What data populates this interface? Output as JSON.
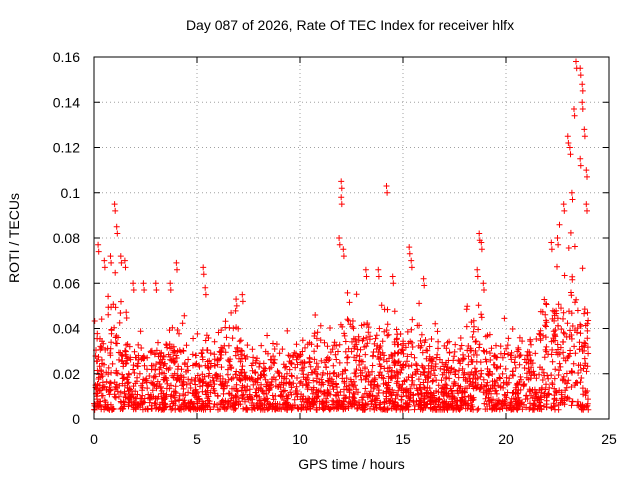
{
  "chart_data": {
    "type": "scatter",
    "title": "Day 087 of 2026, Rate Of TEC Index for receiver hlfx",
    "xlabel": "GPS time / hours",
    "ylabel": "ROTI / TECUs",
    "xlim": [
      0,
      25
    ],
    "ylim": [
      0,
      0.16
    ],
    "x_ticks": [
      "0",
      "5",
      "10",
      "15",
      "20",
      "25"
    ],
    "y_ticks": [
      "0",
      "0.02",
      "0.04",
      "0.06",
      "0.08",
      "0.1",
      "0.12",
      "0.14",
      "0.16"
    ],
    "grid": true,
    "marker": "+",
    "series": [
      {
        "name": "ROTI",
        "color": "#ff0000",
        "envelope": {
          "x": [
            0,
            0.5,
            1,
            1.5,
            2,
            2.5,
            3,
            3.5,
            4,
            4.5,
            5,
            5.5,
            6,
            6.5,
            7,
            7.5,
            8,
            8.5,
            9,
            9.5,
            10,
            10.5,
            11,
            11.5,
            12,
            12.5,
            13,
            13.5,
            14,
            14.5,
            15,
            15.5,
            16,
            16.5,
            17,
            17.5,
            18,
            18.5,
            19,
            19.5,
            20,
            20.5,
            21,
            21.5,
            22,
            22.5,
            23,
            23.5,
            24
          ],
          "typical_max": [
            0.04,
            0.05,
            0.06,
            0.05,
            0.04,
            0.035,
            0.035,
            0.04,
            0.045,
            0.035,
            0.03,
            0.035,
            0.04,
            0.045,
            0.04,
            0.03,
            0.03,
            0.03,
            0.03,
            0.035,
            0.035,
            0.04,
            0.04,
            0.04,
            0.05,
            0.045,
            0.045,
            0.05,
            0.045,
            0.04,
            0.045,
            0.045,
            0.04,
            0.035,
            0.035,
            0.03,
            0.045,
            0.05,
            0.045,
            0.04,
            0.035,
            0.04,
            0.035,
            0.04,
            0.06,
            0.07,
            0.08,
            0.07,
            0.05
          ]
        },
        "peaks": [
          {
            "x": 0.2,
            "y": 0.077
          },
          {
            "x": 0.5,
            "y": 0.07
          },
          {
            "x": 0.8,
            "y": 0.072
          },
          {
            "x": 1.0,
            "y": 0.095
          },
          {
            "x": 1.1,
            "y": 0.085
          },
          {
            "x": 1.3,
            "y": 0.072
          },
          {
            "x": 1.5,
            "y": 0.07
          },
          {
            "x": 1.9,
            "y": 0.06
          },
          {
            "x": 2.4,
            "y": 0.06
          },
          {
            "x": 3.0,
            "y": 0.06
          },
          {
            "x": 3.7,
            "y": 0.06
          },
          {
            "x": 4.0,
            "y": 0.069
          },
          {
            "x": 5.3,
            "y": 0.067
          },
          {
            "x": 5.4,
            "y": 0.058
          },
          {
            "x": 6.9,
            "y": 0.053
          },
          {
            "x": 7.2,
            "y": 0.055
          },
          {
            "x": 12.0,
            "y": 0.105
          },
          {
            "x": 12.0,
            "y": 0.098
          },
          {
            "x": 11.9,
            "y": 0.08
          },
          {
            "x": 12.1,
            "y": 0.075
          },
          {
            "x": 13.2,
            "y": 0.066
          },
          {
            "x": 13.8,
            "y": 0.066
          },
          {
            "x": 14.2,
            "y": 0.103
          },
          {
            "x": 14.5,
            "y": 0.063
          },
          {
            "x": 15.3,
            "y": 0.076
          },
          {
            "x": 15.4,
            "y": 0.07
          },
          {
            "x": 16.0,
            "y": 0.062
          },
          {
            "x": 18.7,
            "y": 0.082
          },
          {
            "x": 18.8,
            "y": 0.078
          },
          {
            "x": 18.6,
            "y": 0.066
          },
          {
            "x": 18.9,
            "y": 0.06
          },
          {
            "x": 22.2,
            "y": 0.078
          },
          {
            "x": 22.5,
            "y": 0.08
          },
          {
            "x": 22.8,
            "y": 0.095
          },
          {
            "x": 23.0,
            "y": 0.125
          },
          {
            "x": 23.1,
            "y": 0.12
          },
          {
            "x": 23.3,
            "y": 0.137
          },
          {
            "x": 23.4,
            "y": 0.158
          },
          {
            "x": 23.6,
            "y": 0.155
          },
          {
            "x": 23.7,
            "y": 0.148
          },
          {
            "x": 23.7,
            "y": 0.14
          },
          {
            "x": 23.8,
            "y": 0.128
          },
          {
            "x": 23.9,
            "y": 0.11
          },
          {
            "x": 23.9,
            "y": 0.095
          },
          {
            "x": 23.6,
            "y": 0.115
          },
          {
            "x": 23.2,
            "y": 0.1
          }
        ]
      }
    ]
  }
}
